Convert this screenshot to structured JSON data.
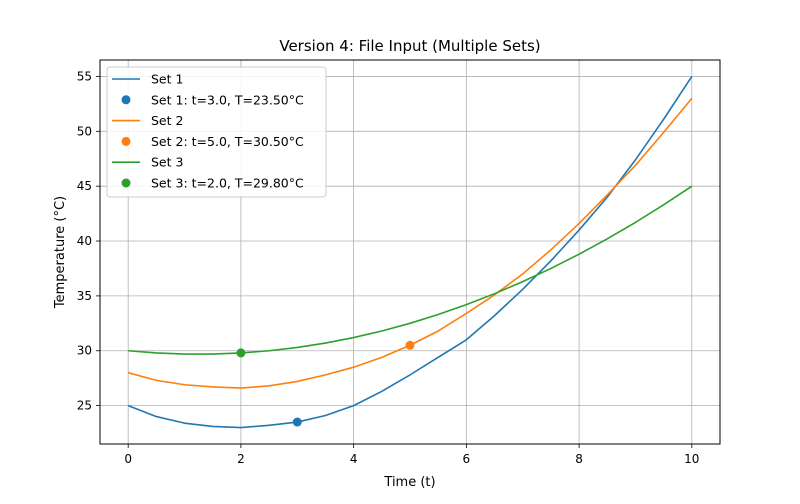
{
  "chart_data": {
    "type": "line",
    "title": "Version 4: File Input (Multiple Sets)",
    "xlabel": "Time (t)",
    "ylabel": "Temperature (°C)",
    "xlim": [
      -0.5,
      10.5
    ],
    "ylim": [
      21.5,
      56.5
    ],
    "xticks": [
      0,
      2,
      4,
      6,
      8,
      10
    ],
    "yticks": [
      25,
      30,
      35,
      40,
      45,
      50,
      55
    ],
    "grid": true,
    "legend_position": "top-left",
    "x": [
      0,
      0.5,
      1,
      1.5,
      2,
      2.5,
      3,
      3.5,
      4,
      4.5,
      5,
      5.5,
      6,
      6.5,
      7,
      7.5,
      8,
      8.5,
      9,
      9.5,
      10
    ],
    "series": [
      {
        "name": "Set 1",
        "color": "#1f77b4",
        "values": [
          25.0,
          24.0,
          23.4,
          23.1,
          23.0,
          23.2,
          23.5,
          24.1,
          25.0,
          26.3,
          27.8,
          29.4,
          31.0,
          33.2,
          35.6,
          38.2,
          41.0,
          44.0,
          47.4,
          51.1,
          55.0
        ],
        "marker": {
          "label": "Set 1: t=3.0, T=23.50°C",
          "x": 3.0,
          "y": 23.5
        }
      },
      {
        "name": "Set 2",
        "color": "#ff7f0e",
        "values": [
          28.0,
          27.3,
          26.9,
          26.7,
          26.6,
          26.8,
          27.2,
          27.8,
          28.5,
          29.4,
          30.5,
          31.8,
          33.4,
          35.1,
          37.0,
          39.2,
          41.6,
          44.2,
          46.9,
          49.9,
          53.0
        ],
        "marker": {
          "label": "Set 2: t=5.0, T=30.50°C",
          "x": 5.0,
          "y": 30.5
        }
      },
      {
        "name": "Set 3",
        "color": "#2ca02c",
        "values": [
          30.0,
          29.8,
          29.7,
          29.7,
          29.8,
          30.0,
          30.3,
          30.7,
          31.2,
          31.8,
          32.5,
          33.3,
          34.2,
          35.2,
          36.3,
          37.5,
          38.8,
          40.2,
          41.7,
          43.3,
          45.0
        ],
        "marker": {
          "label": "Set 3: t=2.0, T=29.80°C",
          "x": 2.0,
          "y": 29.8
        }
      }
    ]
  }
}
